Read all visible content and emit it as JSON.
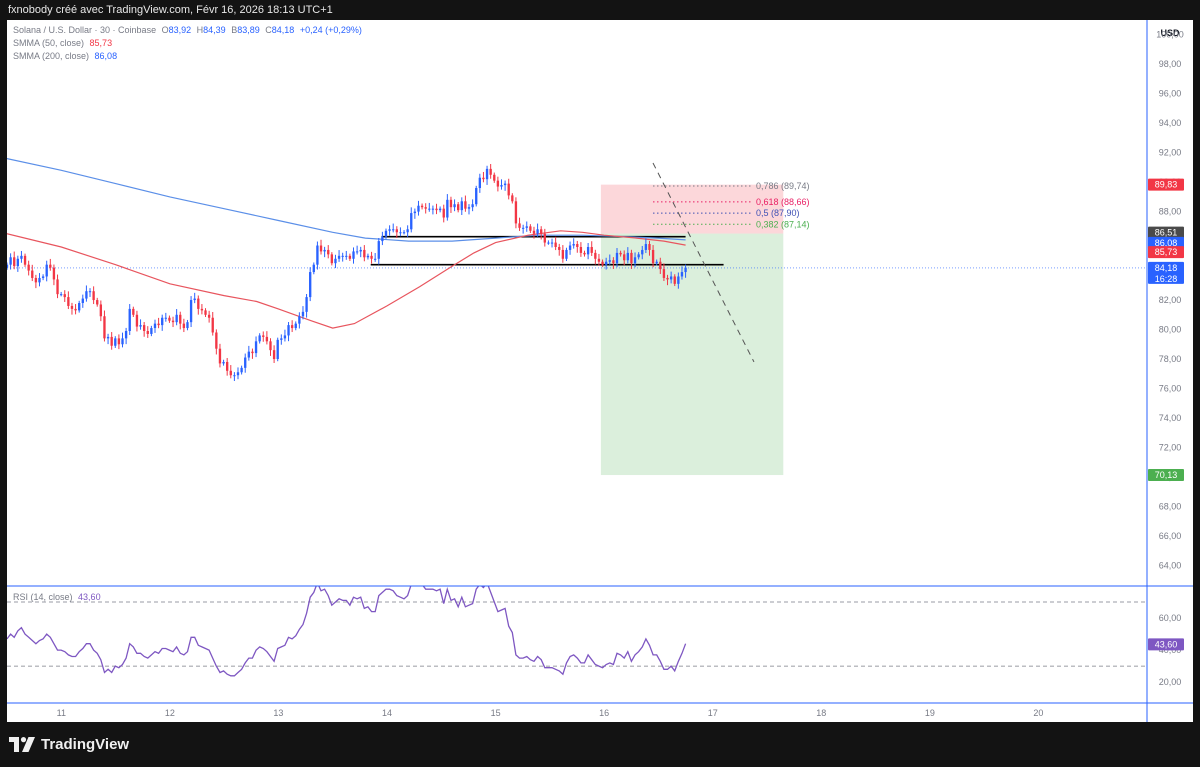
{
  "header": {
    "text": "fxnobody créé avec TradingView.com, Févr 16, 2026 18:13 UTC+1"
  },
  "legend": {
    "symbol": "Solana / U.S. Dollar · 30 · Coinbase",
    "ohlc": {
      "o_label": "O",
      "o": "83,92",
      "h_label": "H",
      "h": "84,39",
      "l_label": "B",
      "l": "83,89",
      "c_label": "C",
      "c": "84,18",
      "change": "+0,24 (+0,29%)"
    },
    "sma50": {
      "label": "SMMA (50, close)",
      "value": "85,73"
    },
    "sma200": {
      "label": "SMMA (200, close)",
      "value": "86,08"
    },
    "rsi": {
      "label": "RSI (14, close)",
      "value": "43,60"
    }
  },
  "axis": {
    "currency": "USD",
    "price_ticks": [
      "100,00",
      "98,00",
      "96,00",
      "94,00",
      "92,00",
      "90,00",
      "88,00",
      "86,00",
      "84,00",
      "82,00",
      "80,00",
      "78,00",
      "76,00",
      "74,00",
      "72,00",
      "70,00",
      "68,00",
      "66,00",
      "64,00"
    ],
    "rsi_ticks": [
      "60,00",
      "40,00",
      "20,00"
    ],
    "time_ticks": [
      "11",
      "12",
      "13",
      "14",
      "15",
      "16",
      "17",
      "18",
      "19",
      "20"
    ]
  },
  "badges": {
    "stop": {
      "value": "89,83",
      "color": "#f23645"
    },
    "smma_a": {
      "value": "86,51",
      "color": "#4a4a4a"
    },
    "sma200": {
      "value": "86,08",
      "color": "#2962ff"
    },
    "sma50": {
      "value": "85,73",
      "color": "#f23645"
    },
    "price": {
      "value": "84,18",
      "time": "16:28",
      "color": "#2962ff"
    },
    "target": {
      "value": "70,13",
      "color": "#4caf50"
    },
    "rsi": {
      "value": "43,60",
      "color": "#7e57c2"
    }
  },
  "fib_levels": [
    {
      "label": "0,786 (89,74)",
      "level": 89.74,
      "color": "#787b86"
    },
    {
      "label": "0,618 (88,66)",
      "level": 88.66,
      "color": "#e91e63"
    },
    {
      "label": "0,5 (87,90)",
      "level": 87.9,
      "color": "#3f51b5"
    },
    {
      "label": "0,382 (87,14)",
      "level": 87.14,
      "color": "#4caf50"
    }
  ],
  "chart_data": {
    "type": "candlestick",
    "x_unit": "day of February 2026",
    "xlim": [
      10.5,
      21.0
    ],
    "ylim": [
      62.6,
      101.0
    ],
    "ohlc_last": {
      "open": 83.92,
      "high": 84.39,
      "low": 83.89,
      "close": 84.18
    },
    "closes": [
      84.4,
      84.9,
      84.3,
      84.8,
      85,
      84.4,
      84,
      83.5,
      83.2,
      83.5,
      83.6,
      84.4,
      84.2,
      83.4,
      82.4,
      82.4,
      82.2,
      81.6,
      81.4,
      81.3,
      81.8,
      82.1,
      82.6,
      82.6,
      82,
      81.7,
      80.9,
      79.4,
      79.5,
      78.9,
      79.4,
      79,
      79.4,
      79.9,
      81.4,
      81,
      80.2,
      80.3,
      79.9,
      79.7,
      80.1,
      80.4,
      80.3,
      80.8,
      80.8,
      80.6,
      80.5,
      81,
      80.4,
      80.1,
      80.5,
      82,
      82.1,
      81.4,
      81.3,
      81,
      80.8,
      79.8,
      78.7,
      77.7,
      77.8,
      77.2,
      76.9,
      76.9,
      77.1,
      77.4,
      78.1,
      78.5,
      78.4,
      79.2,
      79.6,
      79.5,
      79.2,
      78.6,
      78,
      79.3,
      79.4,
      79.6,
      80.3,
      80.1,
      80.4,
      80.9,
      81.2,
      82.2,
      83.9,
      84.4,
      85.7,
      85.3,
      85.4,
      85.1,
      84.5,
      84.8,
      85,
      85,
      85,
      84.8,
      85.3,
      85.3,
      85.4,
      84.9,
      85,
      84.8,
      84.8,
      86,
      86.3,
      86.7,
      86.8,
      86.8,
      86.6,
      86.6,
      86.6,
      86.8,
      87.9,
      88,
      88.4,
      88.3,
      88.2,
      88.2,
      88.2,
      88.1,
      88.2,
      87.6,
      88.8,
      88.3,
      88.5,
      88.1,
      88.7,
      88.2,
      88.3,
      88.5,
      89.6,
      90.3,
      90.2,
      90.9,
      90.5,
      90.1,
      89.7,
      89.8,
      89.9,
      89.1,
      88.7,
      87.2,
      86.9,
      86.9,
      87,
      86.7,
      86.5,
      86.8,
      86.5,
      85.9,
      85.9,
      85.9,
      85.6,
      85.4,
      84.8,
      85.4,
      85.7,
      85.8,
      85.6,
      85.2,
      85.1,
      85.6,
      85.2,
      84.8,
      84.6,
      84.4,
      84.6,
      84.7,
      84.5,
      85.2,
      85.1,
      84.7,
      85.2,
      84.5,
      84.9,
      85.1,
      85.4,
      85.8,
      85.4,
      84.5,
      84.6,
      84.1,
      83.5,
      83.4,
      83.6,
      83.1,
      83.6,
      83.9,
      84.2
    ],
    "smma50": [
      {
        "x": 10.5,
        "y": 86.5
      },
      {
        "x": 11.0,
        "y": 85.6
      },
      {
        "x": 11.5,
        "y": 84.4
      },
      {
        "x": 12.0,
        "y": 83.1
      },
      {
        "x": 12.5,
        "y": 82.3
      },
      {
        "x": 12.8,
        "y": 81.9
      },
      {
        "x": 13.0,
        "y": 81.4
      },
      {
        "x": 13.3,
        "y": 80.6
      },
      {
        "x": 13.5,
        "y": 80.1
      },
      {
        "x": 13.7,
        "y": 80.4
      },
      {
        "x": 14.0,
        "y": 81.6
      },
      {
        "x": 14.3,
        "y": 82.9
      },
      {
        "x": 14.6,
        "y": 84.3
      },
      {
        "x": 14.8,
        "y": 85.2
      },
      {
        "x": 15.0,
        "y": 85.9
      },
      {
        "x": 15.3,
        "y": 86.4
      },
      {
        "x": 15.6,
        "y": 86.7
      },
      {
        "x": 15.8,
        "y": 86.6
      },
      {
        "x": 16.0,
        "y": 86.4
      },
      {
        "x": 16.3,
        "y": 86.2
      },
      {
        "x": 16.55,
        "y": 86.0
      },
      {
        "x": 16.75,
        "y": 85.73
      }
    ],
    "smma200": [
      {
        "x": 10.5,
        "y": 91.6
      },
      {
        "x": 11.0,
        "y": 90.8
      },
      {
        "x": 11.5,
        "y": 89.9
      },
      {
        "x": 12.0,
        "y": 89.0
      },
      {
        "x": 12.5,
        "y": 88.2
      },
      {
        "x": 13.0,
        "y": 87.4
      },
      {
        "x": 13.5,
        "y": 86.6
      },
      {
        "x": 13.8,
        "y": 86.2
      },
      {
        "x": 14.2,
        "y": 86.0
      },
      {
        "x": 14.6,
        "y": 86.0
      },
      {
        "x": 15.0,
        "y": 86.2
      },
      {
        "x": 15.4,
        "y": 86.4
      },
      {
        "x": 15.8,
        "y": 86.4
      },
      {
        "x": 16.2,
        "y": 86.3
      },
      {
        "x": 16.5,
        "y": 86.2
      },
      {
        "x": 16.75,
        "y": 86.08
      }
    ],
    "rsi": [
      47,
      50,
      48,
      52,
      54,
      50,
      48,
      46,
      44,
      46,
      47,
      50,
      48,
      44,
      40,
      40,
      39,
      37,
      36,
      36,
      39,
      41,
      44,
      44,
      40,
      38,
      34,
      26,
      28,
      26,
      30,
      29,
      31,
      35,
      44,
      42,
      38,
      38,
      36,
      35,
      37,
      39,
      38,
      41,
      41,
      40,
      39,
      42,
      38,
      37,
      39,
      48,
      48,
      43,
      42,
      41,
      40,
      35,
      30,
      26,
      27,
      25,
      24,
      24,
      26,
      28,
      32,
      35,
      35,
      40,
      42,
      41,
      39,
      36,
      33,
      41,
      42,
      43,
      48,
      47,
      49,
      53,
      56,
      63,
      73,
      76,
      82,
      77,
      78,
      74,
      68,
      70,
      72,
      71,
      71,
      68,
      73,
      72,
      73,
      66,
      67,
      64,
      64,
      74,
      76,
      78,
      78,
      77,
      74,
      73,
      72,
      74,
      81,
      81,
      83,
      81,
      78,
      78,
      78,
      77,
      78,
      69,
      78,
      71,
      72,
      67,
      73,
      67,
      68,
      69,
      78,
      81,
      79,
      82,
      76,
      70,
      64,
      65,
      66,
      55,
      51,
      37,
      35,
      35,
      36,
      34,
      33,
      36,
      34,
      29,
      29,
      29,
      28,
      27,
      25,
      32,
      36,
      37,
      35,
      32,
      32,
      37,
      34,
      31,
      30,
      29,
      31,
      32,
      31,
      38,
      37,
      35,
      39,
      33,
      37,
      39,
      42,
      47,
      43,
      37,
      37,
      33,
      28,
      28,
      30,
      27,
      33,
      38,
      44
    ],
    "rsi_bands": [
      70,
      30
    ],
    "rsi_ylim": [
      7,
      80
    ],
    "horizontal_lines": [
      {
        "x1": 13.95,
        "x2": 16.75,
        "y": 86.3
      },
      {
        "x1": 13.85,
        "x2": 17.1,
        "y": 84.4
      }
    ],
    "position": {
      "entry": 86.51,
      "stop": 89.83,
      "target": 70.13,
      "x1": 15.97,
      "x2": 17.65
    },
    "fib_x": [
      16.45,
      17.35
    ],
    "trend_line": {
      "x1": 16.45,
      "y1": 91.3,
      "x2": 17.38,
      "y2": 77.8
    },
    "last_price": 84.18
  }
}
